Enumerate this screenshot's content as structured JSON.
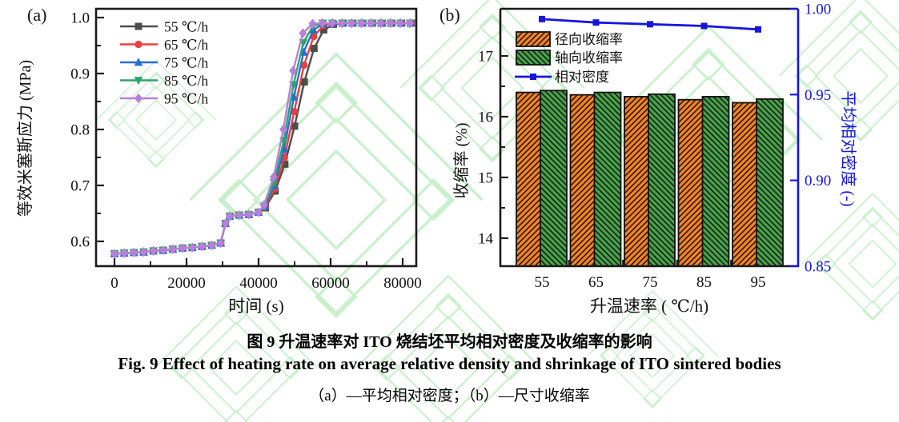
{
  "colors": {
    "frame": "#1a1a1a",
    "watermark": "#a5e7a8",
    "right_axis_blue": "#1515DE",
    "bar_orange": "#F5821F",
    "bar_green": "#45A247"
  },
  "caption": {
    "line1": "图 9 升温速率对 ITO 烧结坯平均相对密度及收缩率的影响",
    "line2": "Fig. 9 Effect of heating rate on average relative density and shrinkage of ITO sintered bodies",
    "line3": "（a）—平均相对密度；（b）—尺寸收缩率"
  },
  "chart_data": [
    {
      "type": "line",
      "panel": "(a)",
      "xlabel": "时间 (s)",
      "ylabel": "等效米塞斯应力 (MPa)",
      "xlim": [
        -5111,
        83778
      ],
      "ylim": [
        0.5557,
        1.0157
      ],
      "x_ticks": [
        0,
        20000,
        40000,
        60000,
        80000
      ],
      "x_tick_labels": [
        "0",
        "20000",
        "40000",
        "60000",
        "80000"
      ],
      "x_minor_ticks": [
        10000,
        30000,
        50000,
        70000
      ],
      "y_ticks": [
        0.6,
        0.7,
        0.8,
        0.9,
        1.0
      ],
      "y_tick_labels": [
        "0.6",
        "0.7",
        "0.8",
        "0.9",
        "1.0"
      ],
      "y_minor_ticks": [
        0.65,
        0.75,
        0.85,
        0.95
      ],
      "legend_position": "upper-left",
      "grid": false,
      "common_points": [
        [
          0,
          0.578
        ],
        [
          2700,
          0.579
        ],
        [
          5400,
          0.58
        ],
        [
          8100,
          0.581
        ],
        [
          10800,
          0.583
        ],
        [
          13500,
          0.584
        ],
        [
          16200,
          0.586
        ],
        [
          18900,
          0.588
        ],
        [
          21600,
          0.589
        ],
        [
          24300,
          0.591
        ],
        [
          27000,
          0.593
        ],
        [
          29500,
          0.597
        ],
        [
          30800,
          0.632
        ],
        [
          32000,
          0.645
        ],
        [
          34600,
          0.647
        ],
        [
          37300,
          0.648
        ],
        [
          40000,
          0.652
        ]
      ],
      "series": [
        {
          "label": "55 ℃/h",
          "color": "#4d4d4d",
          "marker": "square",
          "points": [
            [
              41900,
              0.66
            ],
            [
              44600,
              0.69
            ],
            [
              47300,
              0.738
            ],
            [
              50000,
              0.806
            ],
            [
              52700,
              0.885
            ],
            [
              55400,
              0.945
            ],
            [
              58100,
              0.978
            ],
            [
              60800,
              0.988
            ],
            [
              63500,
              0.99
            ],
            [
              66200,
              0.99
            ],
            [
              68900,
              0.99
            ],
            [
              71600,
              0.99
            ],
            [
              74300,
              0.99
            ],
            [
              77000,
              0.99
            ],
            [
              79700,
              0.99
            ],
            [
              82400,
              0.99
            ]
          ]
        },
        {
          "label": "65 ℃/h",
          "color": "#ee3d3d",
          "marker": "circle",
          "points": [
            [
              41800,
              0.661
            ],
            [
              44500,
              0.694
            ],
            [
              47200,
              0.75
            ],
            [
              49900,
              0.832
            ],
            [
              52600,
              0.915
            ],
            [
              55300,
              0.966
            ],
            [
              58000,
              0.986
            ],
            [
              60700,
              0.99
            ],
            [
              63400,
              0.99
            ],
            [
              66100,
              0.99
            ],
            [
              68800,
              0.99
            ],
            [
              71500,
              0.99
            ],
            [
              74200,
              0.99
            ],
            [
              76900,
              0.99
            ],
            [
              79600,
              0.99
            ],
            [
              82300,
              0.99
            ]
          ]
        },
        {
          "label": "75 ℃/h",
          "color": "#2b6bd5",
          "marker": "triangle-up",
          "points": [
            [
              41700,
              0.662
            ],
            [
              44400,
              0.7
            ],
            [
              47100,
              0.765
            ],
            [
              49800,
              0.858
            ],
            [
              52500,
              0.938
            ],
            [
              55200,
              0.978
            ],
            [
              57900,
              0.989
            ],
            [
              60600,
              0.99
            ],
            [
              63300,
              0.99
            ],
            [
              66000,
              0.99
            ],
            [
              68700,
              0.99
            ],
            [
              71400,
              0.99
            ],
            [
              74100,
              0.99
            ],
            [
              76800,
              0.99
            ],
            [
              79500,
              0.99
            ],
            [
              82200,
              0.99
            ]
          ]
        },
        {
          "label": "85 ℃/h",
          "color": "#2ca566",
          "marker": "triangle-down",
          "points": [
            [
              41600,
              0.663
            ],
            [
              44300,
              0.705
            ],
            [
              47000,
              0.78
            ],
            [
              49700,
              0.88
            ],
            [
              52400,
              0.955
            ],
            [
              55100,
              0.985
            ],
            [
              57800,
              0.99
            ],
            [
              60500,
              0.99
            ],
            [
              63200,
              0.99
            ],
            [
              65900,
              0.99
            ],
            [
              68600,
              0.99
            ],
            [
              71300,
              0.99
            ],
            [
              74000,
              0.99
            ],
            [
              76700,
              0.99
            ],
            [
              79400,
              0.99
            ],
            [
              82100,
              0.99
            ]
          ]
        },
        {
          "label": "95 ℃/h",
          "color": "#b87fd9",
          "marker": "diamond",
          "points": [
            [
              41500,
              0.665
            ],
            [
              44200,
              0.715
            ],
            [
              46900,
              0.8
            ],
            [
              49600,
              0.905
            ],
            [
              52300,
              0.972
            ],
            [
              55000,
              0.989
            ],
            [
              57700,
              0.99
            ],
            [
              60400,
              0.99
            ],
            [
              63100,
              0.99
            ],
            [
              65800,
              0.99
            ],
            [
              68500,
              0.99
            ],
            [
              71200,
              0.99
            ],
            [
              73900,
              0.99
            ],
            [
              76600,
              0.99
            ],
            [
              79300,
              0.99
            ],
            [
              82000,
              0.99
            ]
          ]
        }
      ]
    },
    {
      "type": "bar",
      "panel": "(b)",
      "xlabel": "升温速率 ( ℃/h)",
      "ylabel_left": "收缩率 (%)",
      "ylabel_right": "平均相对密度 (-)",
      "categories": [
        "55",
        "65",
        "75",
        "85",
        "95"
      ],
      "ylim_left": [
        13.53,
        17.77
      ],
      "yticks_left": [
        14,
        15,
        16,
        17
      ],
      "yticks_left_labels": [
        "14",
        "15",
        "16",
        "17"
      ],
      "y_minor_left": [
        14.5,
        15.5,
        16.5
      ],
      "ylim_right": [
        0.85,
        1.0
      ],
      "yticks_right": [
        0.85,
        0.9,
        0.95,
        1.0
      ],
      "yticks_right_labels": [
        "0.85",
        "0.90",
        "0.95",
        "1.00"
      ],
      "legend_position": "upper-left",
      "grid": false,
      "series": [
        {
          "name": "径向收缩率",
          "type": "bar",
          "hatch": "fwd",
          "color": "#F5821F",
          "values": [
            16.4,
            16.36,
            16.33,
            16.28,
            16.23
          ]
        },
        {
          "name": "轴向收缩率",
          "type": "bar",
          "hatch": "back",
          "color": "#45A247",
          "values": [
            16.43,
            16.4,
            16.37,
            16.33,
            16.29
          ]
        },
        {
          "name": "相对密度",
          "type": "line",
          "axis": "right",
          "color": "#1515DE",
          "marker": "square",
          "values": [
            0.994,
            0.992,
            0.991,
            0.99,
            0.988
          ]
        }
      ]
    }
  ]
}
